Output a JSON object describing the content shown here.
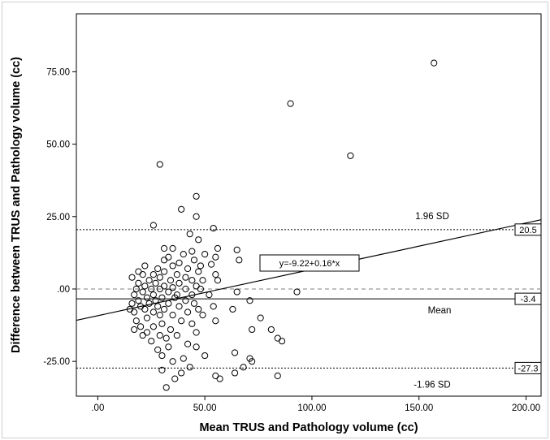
{
  "chart_data": {
    "type": "scatter",
    "xlabel": "Mean TRUS and Pathology volume (cc)",
    "ylabel": "Difference between TRUS and Pathology volume (cc)",
    "xlim": [
      -10,
      207
    ],
    "ylim": [
      -37,
      95
    ],
    "x_ticks": [
      0,
      50,
      100,
      150,
      200
    ],
    "x_tick_labels": [
      ".00",
      "50.00",
      "100.00",
      "150.00",
      "200.00"
    ],
    "y_ticks": [
      -25,
      0,
      25,
      50,
      75
    ],
    "y_tick_labels": [
      "-25.00",
      ".00",
      "25.00",
      "50.00",
      "75.00"
    ],
    "grid": false,
    "reference_lines": [
      {
        "id": "upper-loa",
        "y": 20.5,
        "style": "dotted",
        "label": "1.96 SD",
        "box_label": "20.5"
      },
      {
        "id": "zero",
        "y": 0,
        "style": "dashed",
        "color": "#999999"
      },
      {
        "id": "mean",
        "y": -3.4,
        "style": "solid",
        "label": "Mean",
        "box_label": "-3.4"
      },
      {
        "id": "lower-loa",
        "y": -27.3,
        "style": "dotted",
        "label": "-1.96 SD",
        "box_label": "-27.3"
      }
    ],
    "regression": {
      "equation": "y=-9.22+0.16*x",
      "intercept": -9.22,
      "slope": 0.16
    },
    "points": [
      [
        157,
        78
      ],
      [
        90,
        64
      ],
      [
        118,
        46
      ],
      [
        29,
        43
      ],
      [
        46,
        32
      ],
      [
        39,
        27.5
      ],
      [
        46,
        25
      ],
      [
        26,
        22
      ],
      [
        54,
        21
      ],
      [
        43,
        19
      ],
      [
        47,
        17
      ],
      [
        56,
        14
      ],
      [
        65,
        13.5
      ],
      [
        31,
        14
      ],
      [
        35,
        14
      ],
      [
        44,
        13
      ],
      [
        50,
        12
      ],
      [
        40,
        12
      ],
      [
        55,
        11
      ],
      [
        33,
        11
      ],
      [
        45,
        10
      ],
      [
        66,
        10
      ],
      [
        31,
        10
      ],
      [
        38,
        9
      ],
      [
        48,
        8
      ],
      [
        53,
        8.5
      ],
      [
        22,
        8
      ],
      [
        35,
        8
      ],
      [
        28,
        7
      ],
      [
        42,
        7
      ],
      [
        19,
        6
      ],
      [
        31,
        6
      ],
      [
        47,
        6
      ],
      [
        26,
        5
      ],
      [
        21,
        5
      ],
      [
        37,
        5
      ],
      [
        55,
        5
      ],
      [
        16,
        4
      ],
      [
        29,
        4
      ],
      [
        41,
        4
      ],
      [
        49,
        3
      ],
      [
        24,
        3
      ],
      [
        34,
        3
      ],
      [
        44,
        3
      ],
      [
        56,
        3
      ],
      [
        19,
        2
      ],
      [
        27,
        2
      ],
      [
        38,
        2
      ],
      [
        31,
        1
      ],
      [
        22,
        1
      ],
      [
        46,
        1
      ],
      [
        35,
        0.5
      ],
      [
        18,
        0
      ],
      [
        25,
        0
      ],
      [
        29,
        0
      ],
      [
        41,
        0
      ],
      [
        48,
        0
      ],
      [
        65,
        -1
      ],
      [
        93,
        -1
      ],
      [
        21,
        -1
      ],
      [
        33,
        -1
      ],
      [
        37,
        -2
      ],
      [
        17,
        -2
      ],
      [
        26,
        -2
      ],
      [
        44,
        -2
      ],
      [
        52,
        -2
      ],
      [
        23,
        -3
      ],
      [
        30,
        -3
      ],
      [
        36,
        -3
      ],
      [
        41,
        -4
      ],
      [
        71,
        -4
      ],
      [
        19,
        -4
      ],
      [
        27,
        -4
      ],
      [
        45,
        -5
      ],
      [
        16,
        -5
      ],
      [
        24,
        -5
      ],
      [
        33,
        -5
      ],
      [
        54,
        -6
      ],
      [
        20,
        -6
      ],
      [
        28,
        -6
      ],
      [
        38,
        -6
      ],
      [
        47,
        -7
      ],
      [
        15,
        -7
      ],
      [
        22,
        -7
      ],
      [
        31,
        -7
      ],
      [
        63,
        -7
      ],
      [
        26,
        -8
      ],
      [
        42,
        -8
      ],
      [
        17,
        -8
      ],
      [
        35,
        -9
      ],
      [
        29,
        -9
      ],
      [
        49,
        -9
      ],
      [
        23,
        -10
      ],
      [
        76,
        -10
      ],
      [
        55,
        -11
      ],
      [
        18,
        -11
      ],
      [
        39,
        -11
      ],
      [
        30,
        -12
      ],
      [
        44,
        -12
      ],
      [
        20,
        -13
      ],
      [
        26,
        -13
      ],
      [
        34,
        -14
      ],
      [
        72,
        -14
      ],
      [
        81,
        -14
      ],
      [
        17,
        -14
      ],
      [
        23,
        -15
      ],
      [
        46,
        -15
      ],
      [
        29,
        -16
      ],
      [
        37,
        -16
      ],
      [
        21,
        -16
      ],
      [
        84,
        -17
      ],
      [
        32,
        -17
      ],
      [
        86,
        -18
      ],
      [
        25,
        -18
      ],
      [
        42,
        -19
      ],
      [
        33,
        -20
      ],
      [
        46,
        -20
      ],
      [
        28,
        -21
      ],
      [
        50,
        -23
      ],
      [
        64,
        -22
      ],
      [
        30,
        -23
      ],
      [
        40,
        -24
      ],
      [
        71,
        -24
      ],
      [
        35,
        -25
      ],
      [
        72,
        -25
      ],
      [
        43,
        -27
      ],
      [
        68,
        -27
      ],
      [
        30,
        -28
      ],
      [
        39,
        -29
      ],
      [
        64,
        -29
      ],
      [
        84,
        -30
      ],
      [
        55,
        -30
      ],
      [
        57,
        -31
      ],
      [
        36,
        -31
      ],
      [
        32,
        -34
      ]
    ]
  }
}
